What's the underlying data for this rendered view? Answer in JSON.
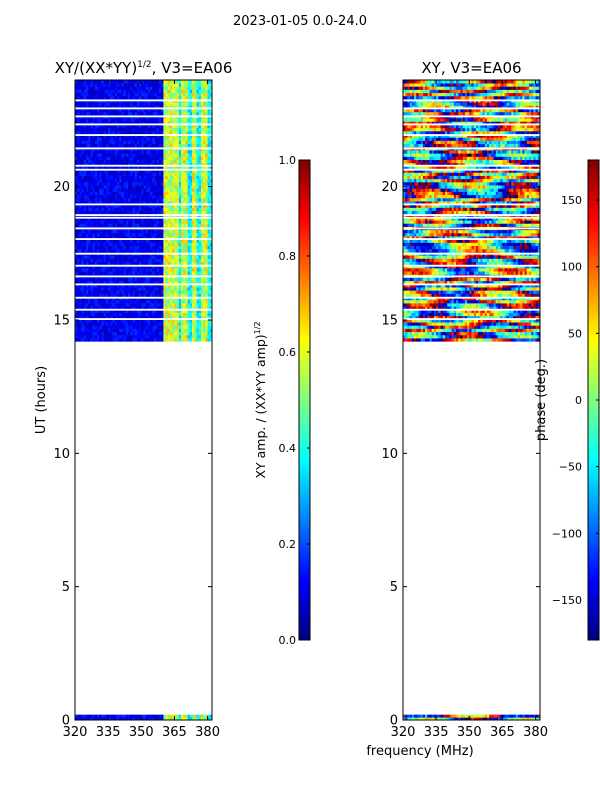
{
  "figure": {
    "suptitle": "2023-01-05 0.0-24.0",
    "shared_xlabel": "frequency (MHz)",
    "colormap": [
      "#00007f",
      "#0000ff",
      "#007fff",
      "#00ffff",
      "#7fff7f",
      "#ffff00",
      "#ff7f00",
      "#ff0000",
      "#7f0000"
    ]
  },
  "chart_data": [
    {
      "type": "heatmap",
      "title_prefix": "XY/(XX*YY)",
      "title_superscript": "1/2",
      "title_suffix": ", V3=EA06",
      "ylabel": "UT (hours)",
      "xlim": [
        320,
        382
      ],
      "ylim": [
        0,
        24
      ],
      "xticks": [
        320,
        335,
        350,
        365,
        380
      ],
      "yticks": [
        0,
        5,
        10,
        15,
        20
      ],
      "data_rows_ut": [
        [
          14.2,
          24.0
        ],
        [
          0.0,
          0.2
        ]
      ],
      "bright_channels_mhz": [
        [
          360,
          364
        ],
        [
          364,
          367
        ],
        [
          368,
          371
        ],
        [
          373,
          375
        ],
        [
          377,
          380
        ]
      ],
      "colorbar": {
        "label_prefix": "XY amp. / (XX*YY amp)",
        "label_superscript": "1/2",
        "range": [
          0.0,
          1.0
        ],
        "ticks": [
          "0.0",
          "0.2",
          "0.4",
          "0.6",
          "0.8",
          "1.0"
        ]
      }
    },
    {
      "type": "heatmap",
      "title": "XY, V3=EA06",
      "xlim": [
        320,
        382
      ],
      "ylim": [
        0,
        24
      ],
      "xticks": [
        320,
        335,
        350,
        365,
        380
      ],
      "yticks": [
        0,
        5,
        10,
        15,
        20
      ],
      "data_rows_ut": [
        [
          14.2,
          24.0
        ],
        [
          0.0,
          0.2
        ]
      ],
      "colorbar": {
        "label": "phase (deg.)",
        "range": [
          -180,
          180
        ],
        "ticks": [
          "−150",
          "−100",
          "−50",
          "0",
          "50",
          "100",
          "150"
        ]
      }
    }
  ]
}
